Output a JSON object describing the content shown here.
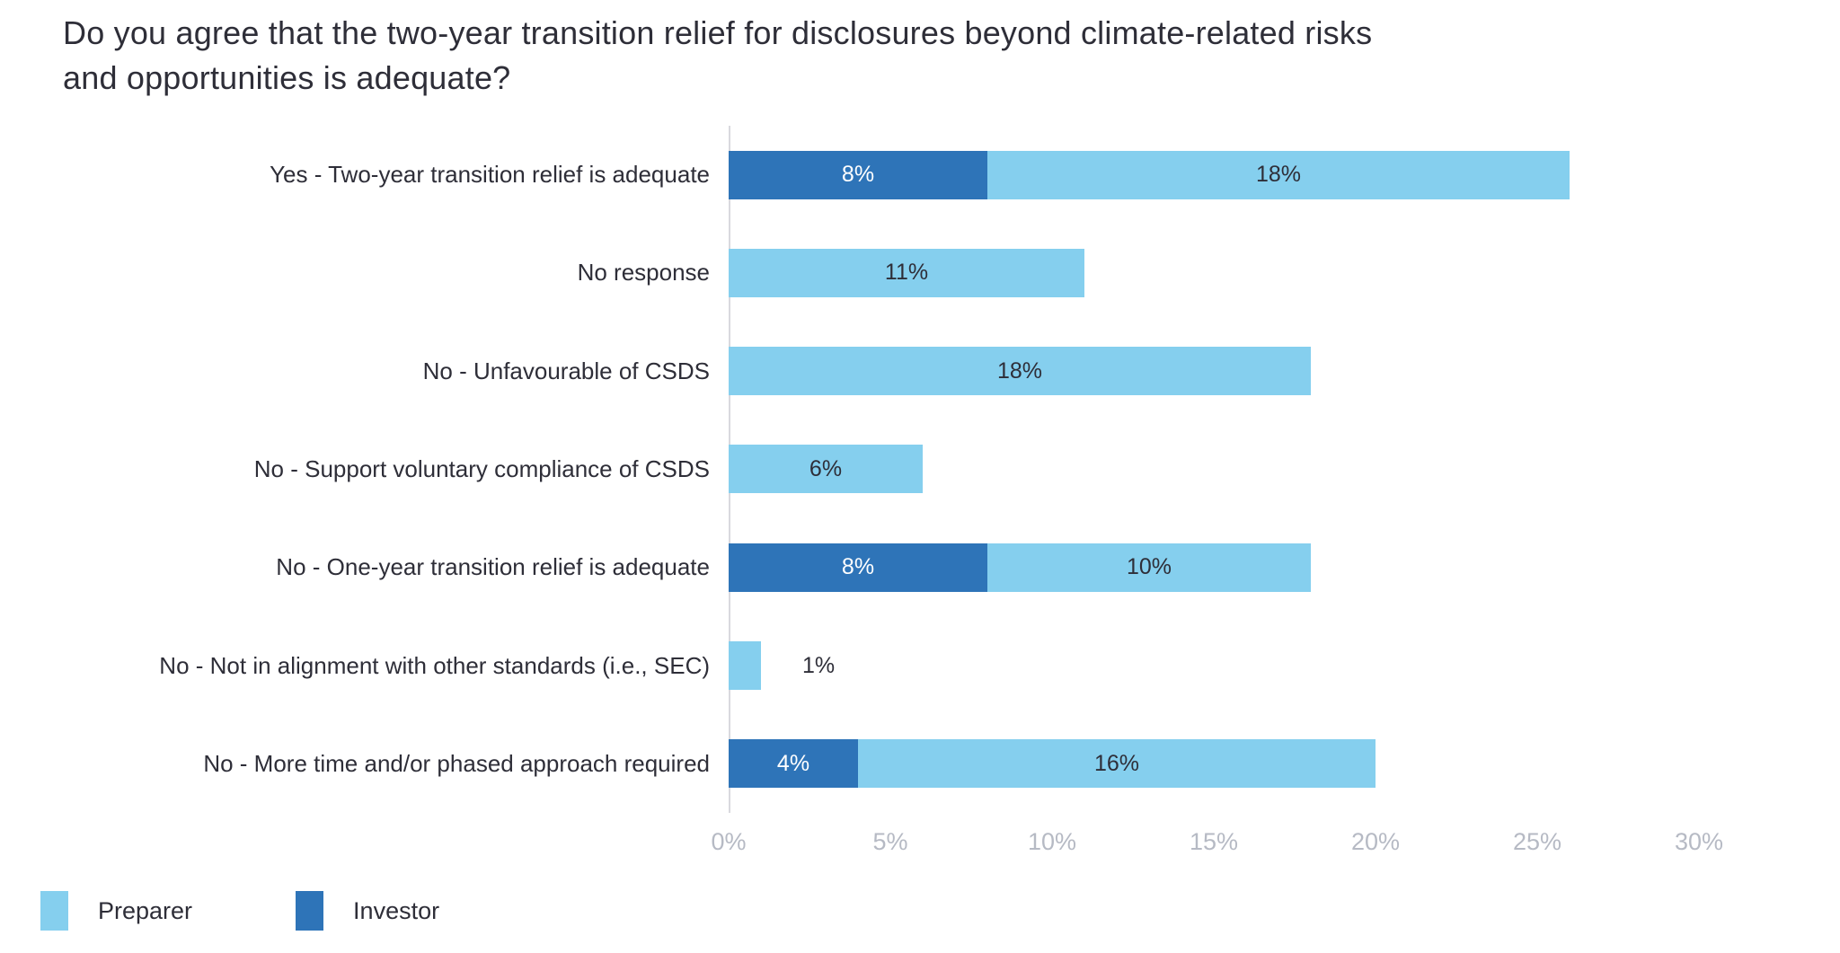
{
  "title": {
    "line1": "Do you agree that the two-year transition relief for disclosures beyond climate-related risks",
    "line2": "and opportunities is adequate?"
  },
  "colors": {
    "background": "#FFFFFF",
    "title_text": "#2E2E38",
    "category_text": "#2E2E38",
    "axis_tick_text": "#B6BAC4",
    "axis_line": "#D9D9DE",
    "preparer": "#85CFEE",
    "investor": "#2E74B8"
  },
  "legend": {
    "items": [
      {
        "label": "Preparer",
        "color": "#85CFEE"
      },
      {
        "label": "Investor",
        "color": "#2E74B8"
      }
    ]
  },
  "chart_data": {
    "type": "bar",
    "orientation": "horizontal",
    "stacked": true,
    "title": "Do you agree that the two-year transition relief for disclosures beyond climate-related risks and opportunities is adequate?",
    "categories": [
      "Yes - Two-year transition relief is adequate",
      "No response",
      "No - Unfavourable of CSDS",
      "No - Support voluntary compliance of CSDS",
      "No - One-year transition relief is adequate",
      "No - Not in alignment with other standards (i.e., SEC)",
      "No - More time and/or phased approach required"
    ],
    "series": [
      {
        "name": "Investor",
        "color": "#2E74B8",
        "label_color": "#FFFFFF",
        "values": [
          8,
          0,
          0,
          0,
          8,
          0,
          4
        ]
      },
      {
        "name": "Preparer",
        "color": "#85CFEE",
        "label_color": "#2E2E38",
        "values": [
          18,
          11,
          18,
          6,
          10,
          1,
          16
        ]
      }
    ],
    "stack_order": [
      "Investor",
      "Preparer"
    ],
    "value_suffix": "%",
    "x_ticks": [
      {
        "value": 0,
        "label": "0%"
      },
      {
        "value": 5,
        "label": "5%"
      },
      {
        "value": 10,
        "label": "10%"
      },
      {
        "value": 15,
        "label": "15%"
      },
      {
        "value": 20,
        "label": "20%"
      },
      {
        "value": 25,
        "label": "25%"
      },
      {
        "value": 30,
        "label": "30%"
      }
    ],
    "xlim": [
      0,
      30
    ],
    "grid": false,
    "legend_position": "bottom-left"
  }
}
